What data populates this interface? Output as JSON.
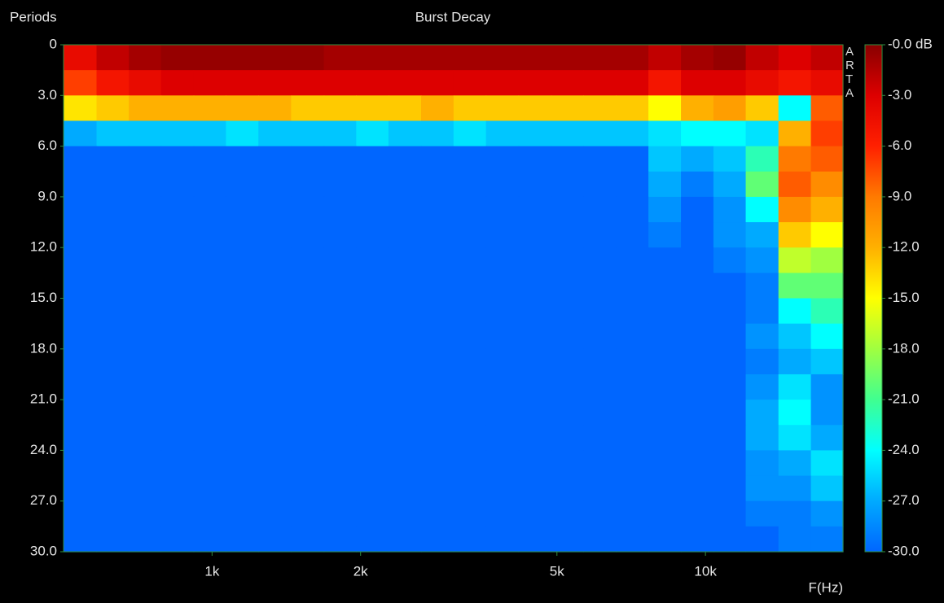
{
  "chart_data": {
    "type": "heatmap",
    "title": "Burst Decay",
    "y_label": "Periods",
    "x_label": "F(Hz)",
    "watermark": "ARTA",
    "x_scale": "log",
    "xlim": [
      500,
      19000
    ],
    "xticks": [
      {
        "value": 1000,
        "label": "1k"
      },
      {
        "value": 2000,
        "label": "2k"
      },
      {
        "value": 5000,
        "label": "5k"
      },
      {
        "value": 10000,
        "label": "10k"
      }
    ],
    "ylim": [
      0,
      30
    ],
    "yticks": [
      0,
      {
        "value": 3,
        "label": "3.0"
      },
      {
        "value": 6,
        "label": "6.0"
      },
      {
        "value": 9,
        "label": "9.0"
      },
      {
        "value": 12,
        "label": "12.0"
      },
      {
        "value": 15,
        "label": "15.0"
      },
      {
        "value": 18,
        "label": "18.0"
      },
      {
        "value": 21,
        "label": "21.0"
      },
      {
        "value": 24,
        "label": "24.0"
      },
      {
        "value": 27,
        "label": "27.0"
      },
      {
        "value": 30,
        "label": "30.0"
      }
    ],
    "zlim": [
      -30,
      0
    ],
    "zticks": [
      {
        "value": 0,
        "label": "-0.0 dB"
      },
      {
        "value": -3,
        "label": "-3.0"
      },
      {
        "value": -6,
        "label": "-6.0"
      },
      {
        "value": -9,
        "label": "-9.0"
      },
      {
        "value": -12,
        "label": "-12.0"
      },
      {
        "value": -15,
        "label": "-15.0"
      },
      {
        "value": -18,
        "label": "-18.0"
      },
      {
        "value": -21,
        "label": "-21.0"
      },
      {
        "value": -24,
        "label": "-24.0"
      },
      {
        "value": -27,
        "label": "-27.0"
      },
      {
        "value": -30,
        "label": "-30.0"
      }
    ],
    "colorscale": [
      "#0066ff",
      "#00aaff",
      "#00ffff",
      "#40ff90",
      "#a0ff40",
      "#ffff00",
      "#ffb000",
      "#ff7a00",
      "#ff2000",
      "#dd0000",
      "#880000"
    ],
    "x": [
      540,
      630,
      730,
      850,
      990,
      1150,
      1340,
      1560,
      1820,
      2110,
      2460,
      2860,
      3330,
      3870,
      4510,
      5250,
      6100,
      7100,
      8270,
      9620,
      11200,
      13000,
      15200,
      17600
    ],
    "y": [
      0.75,
      2.25,
      3.75,
      5.25,
      6.75,
      8.25,
      9.75,
      11.25,
      12.75,
      14.25,
      15.75,
      17.25,
      18.75,
      20.25,
      21.75,
      23.25,
      24.75,
      26.25,
      27.75,
      29.25
    ],
    "z": [
      [
        -4,
        -2,
        -1,
        -0.5,
        -0.5,
        -0.5,
        -0.5,
        -0.5,
        -1,
        -1,
        -1,
        -1,
        -1,
        -1,
        -1,
        -1,
        -1,
        -1,
        -2,
        -1,
        -0.5,
        -2,
        -3,
        -2
      ],
      [
        -7,
        -5,
        -4,
        -3,
        -3,
        -3,
        -3,
        -3,
        -3,
        -3,
        -3,
        -3,
        -3,
        -3,
        -3,
        -3,
        -3,
        -3,
        -5,
        -3,
        -3,
        -4,
        -5,
        -4
      ],
      [
        -14,
        -13,
        -12,
        -12,
        -12,
        -12,
        -12,
        -13,
        -13,
        -13,
        -13,
        -12,
        -13,
        -13,
        -13,
        -13,
        -13,
        -13,
        -15,
        -12,
        -11,
        -13,
        -24,
        -8
      ],
      [
        -27,
        -26,
        -26,
        -26,
        -26,
        -25,
        -26,
        -26,
        -26,
        -25,
        -26,
        -26,
        -25,
        -26,
        -26,
        -26,
        -26,
        -26,
        -25,
        -24,
        -24,
        -25,
        -12,
        -7
      ],
      [
        -30,
        -30,
        -30,
        -30,
        -30,
        -30,
        -30,
        -30,
        -30,
        -30,
        -30,
        -30,
        -30,
        -30,
        -30,
        -30,
        -30,
        -30,
        -26,
        -27,
        -26,
        -22,
        -9,
        -8
      ],
      [
        -30,
        -30,
        -30,
        -30,
        -30,
        -30,
        -30,
        -30,
        -30,
        -30,
        -30,
        -30,
        -30,
        -30,
        -30,
        -30,
        -30,
        -30,
        -27,
        -29,
        -27,
        -20,
        -8,
        -10
      ],
      [
        -30,
        -30,
        -30,
        -30,
        -30,
        -30,
        -30,
        -30,
        -30,
        -30,
        -30,
        -30,
        -30,
        -30,
        -30,
        -30,
        -30,
        -30,
        -28,
        -30,
        -28,
        -24,
        -10,
        -12
      ],
      [
        -30,
        -30,
        -30,
        -30,
        -30,
        -30,
        -30,
        -30,
        -30,
        -30,
        -30,
        -30,
        -30,
        -30,
        -30,
        -30,
        -30,
        -30,
        -29,
        -30,
        -28,
        -27,
        -13,
        -15
      ],
      [
        -30,
        -30,
        -30,
        -30,
        -30,
        -30,
        -30,
        -30,
        -30,
        -30,
        -30,
        -30,
        -30,
        -30,
        -30,
        -30,
        -30,
        -30,
        -30,
        -30,
        -29,
        -28,
        -17,
        -18
      ],
      [
        -30,
        -30,
        -30,
        -30,
        -30,
        -30,
        -30,
        -30,
        -30,
        -30,
        -30,
        -30,
        -30,
        -30,
        -30,
        -30,
        -30,
        -30,
        -30,
        -30,
        -30,
        -29,
        -20,
        -20
      ],
      [
        -30,
        -30,
        -30,
        -30,
        -30,
        -30,
        -30,
        -30,
        -30,
        -30,
        -30,
        -30,
        -30,
        -30,
        -30,
        -30,
        -30,
        -30,
        -30,
        -30,
        -30,
        -29,
        -24,
        -22
      ],
      [
        -30,
        -30,
        -30,
        -30,
        -30,
        -30,
        -30,
        -30,
        -30,
        -30,
        -30,
        -30,
        -30,
        -30,
        -30,
        -30,
        -30,
        -30,
        -30,
        -30,
        -30,
        -28,
        -26,
        -24
      ],
      [
        -30,
        -30,
        -30,
        -30,
        -30,
        -30,
        -30,
        -30,
        -30,
        -30,
        -30,
        -30,
        -30,
        -30,
        -30,
        -30,
        -30,
        -30,
        -30,
        -30,
        -30,
        -29,
        -27,
        -26
      ],
      [
        -30,
        -30,
        -30,
        -30,
        -30,
        -30,
        -30,
        -30,
        -30,
        -30,
        -30,
        -30,
        -30,
        -30,
        -30,
        -30,
        -30,
        -30,
        -30,
        -30,
        -30,
        -28,
        -25,
        -28
      ],
      [
        -30,
        -30,
        -30,
        -30,
        -30,
        -30,
        -30,
        -30,
        -30,
        -30,
        -30,
        -30,
        -30,
        -30,
        -30,
        -30,
        -30,
        -30,
        -30,
        -30,
        -30,
        -27,
        -24,
        -28
      ],
      [
        -30,
        -30,
        -30,
        -30,
        -30,
        -30,
        -30,
        -30,
        -30,
        -30,
        -30,
        -30,
        -30,
        -30,
        -30,
        -30,
        -30,
        -30,
        -30,
        -30,
        -30,
        -27,
        -25,
        -27
      ],
      [
        -30,
        -30,
        -30,
        -30,
        -30,
        -30,
        -30,
        -30,
        -30,
        -30,
        -30,
        -30,
        -30,
        -30,
        -30,
        -30,
        -30,
        -30,
        -30,
        -30,
        -30,
        -28,
        -27,
        -25
      ],
      [
        -30,
        -30,
        -30,
        -30,
        -30,
        -30,
        -30,
        -30,
        -30,
        -30,
        -30,
        -30,
        -30,
        -30,
        -30,
        -30,
        -30,
        -30,
        -30,
        -30,
        -30,
        -28,
        -28,
        -26
      ],
      [
        -30,
        -30,
        -30,
        -30,
        -30,
        -30,
        -30,
        -30,
        -30,
        -30,
        -30,
        -30,
        -30,
        -30,
        -30,
        -30,
        -30,
        -30,
        -30,
        -30,
        -30,
        -29,
        -29,
        -28
      ],
      [
        -30,
        -30,
        -30,
        -30,
        -30,
        -30,
        -30,
        -30,
        -30,
        -30,
        -30,
        -30,
        -30,
        -30,
        -30,
        -30,
        -30,
        -30,
        -30,
        -30,
        -30,
        -30,
        -29,
        -29
      ]
    ]
  }
}
